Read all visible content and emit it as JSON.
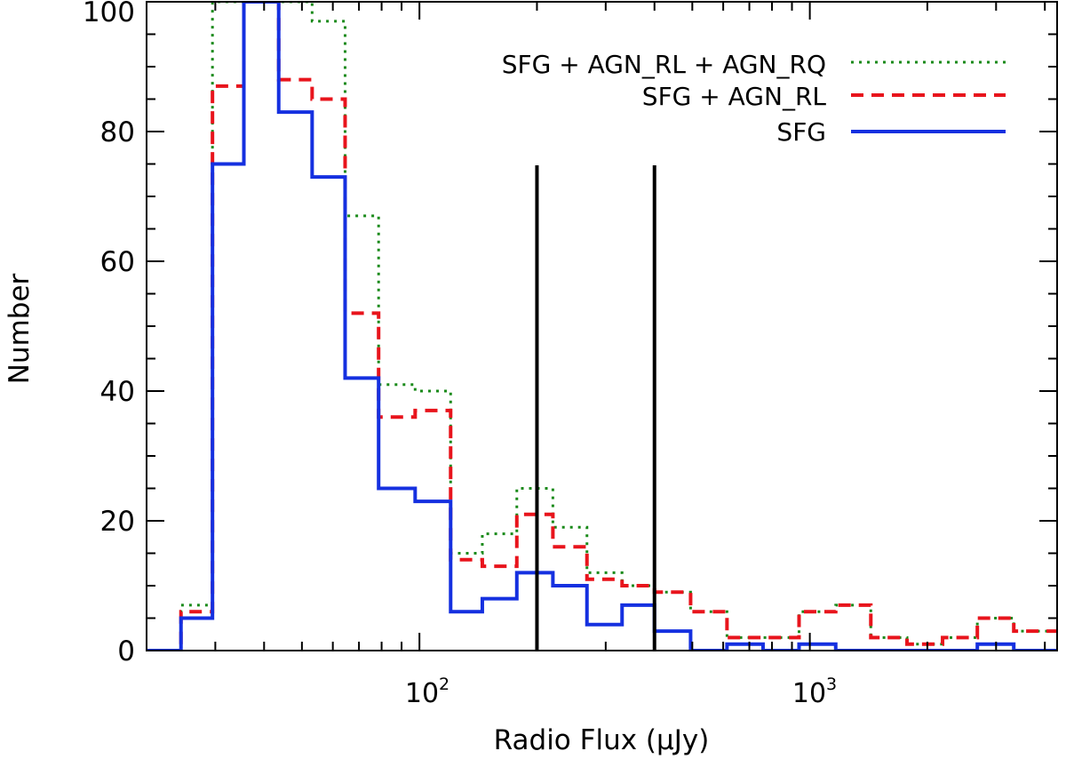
{
  "chart_data": {
    "type": "step histogram",
    "xscale": "log",
    "xlabel": "Radio Flux (μJy)",
    "ylabel": "Number",
    "xlim": [
      20,
      4300
    ],
    "ylim": [
      0,
      100
    ],
    "y_ticks": [
      0,
      20,
      40,
      60,
      80,
      100
    ],
    "y_tick_labels": [
      "0",
      "20",
      "40",
      "60",
      "80",
      "100"
    ],
    "x_ticks": [
      100,
      1000
    ],
    "x_tick_labels": [
      {
        "base": "10",
        "exp": "2"
      },
      {
        "base": "10",
        "exp": "3"
      }
    ],
    "bin_edges": [
      24.5,
      29.5,
      35.5,
      43.6,
      53.1,
      64.5,
      78.6,
      97.5,
      120.2,
      144.9,
      177.6,
      219.7,
      268.6,
      330.4,
      400.0,
      495.0,
      613.5,
      758.9,
      938.4,
      1165.0,
      1433.0,
      1774.0,
      2188.0,
      2686.0,
      3330.0,
      4020.0
    ],
    "vertical_lines": [
      200,
      400
    ],
    "series": [
      {
        "name": "SFG + AGN_RL + AGN_RQ",
        "color": "#1a8a1a",
        "style": "dotted",
        "pre": 0,
        "values": [
          7,
          100,
          100,
          100,
          97,
          67,
          41,
          40,
          15,
          18,
          25,
          19,
          12,
          10,
          9,
          6,
          2,
          2,
          6,
          7,
          2,
          1,
          2,
          5,
          3
        ]
      },
      {
        "name": "SFG + AGN_RL",
        "color": "#e8141c",
        "style": "dashed",
        "pre": 0,
        "values": [
          6,
          87,
          100,
          88,
          85,
          52,
          36,
          37,
          14,
          13,
          21,
          16,
          11,
          10,
          9,
          6,
          2,
          2,
          6,
          7,
          2,
          1,
          2,
          5,
          3
        ]
      },
      {
        "name": "SFG",
        "color": "#1530e0",
        "style": "solid",
        "pre": 0,
        "values": [
          5,
          75,
          100,
          83,
          73,
          42,
          25,
          23,
          6,
          8,
          12,
          10,
          4,
          7,
          3,
          0,
          1,
          0,
          1,
          0,
          0,
          0,
          0,
          1,
          0
        ]
      }
    ],
    "legend_position": "top-right"
  }
}
